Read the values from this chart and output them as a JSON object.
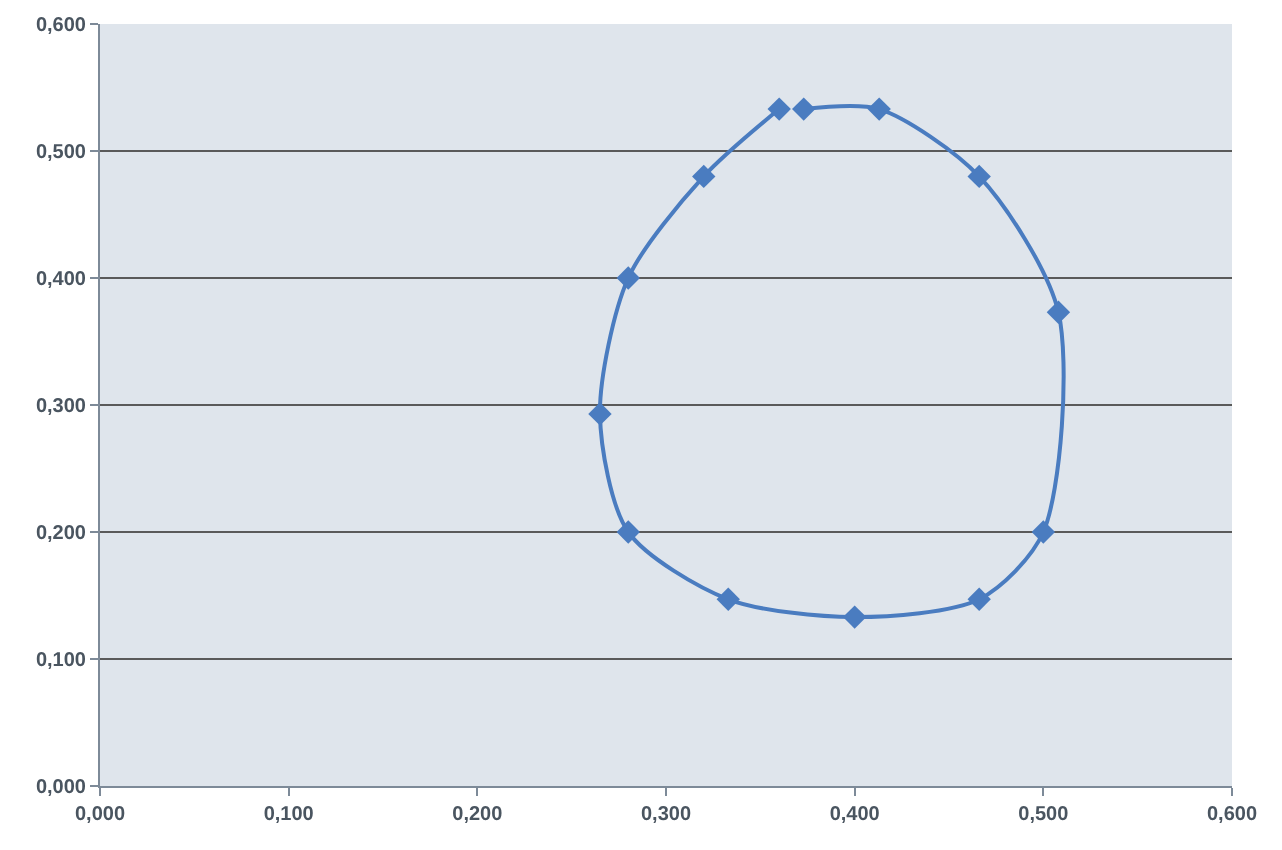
{
  "chart_data": {
    "type": "line",
    "marker": "diamond",
    "grid": "y",
    "x": [
      0.373,
      0.413,
      0.466,
      0.508,
      0.5,
      0.466,
      0.4,
      0.333,
      0.28,
      0.265,
      0.28,
      0.32,
      0.36
    ],
    "series": [
      {
        "color": "#4a7cc0",
        "values": [
          0.533,
          0.533,
          0.48,
          0.373,
          0.2,
          0.147,
          0.133,
          0.147,
          0.2,
          0.293,
          0.4,
          0.48,
          0.533
        ]
      }
    ],
    "xlim": [
      0,
      0.6
    ],
    "ylim": [
      0,
      0.6
    ],
    "xticks": [
      {
        "value": 0,
        "label": "0,000"
      },
      {
        "value": 0.1,
        "label": "0,100"
      },
      {
        "value": 0.2,
        "label": "0,200"
      },
      {
        "value": 0.3,
        "label": "0,300"
      },
      {
        "value": 0.4,
        "label": "0,400"
      },
      {
        "value": 0.5,
        "label": "0,500"
      },
      {
        "value": 0.6,
        "label": "0,600"
      }
    ],
    "yticks": [
      {
        "value": 0,
        "label": "0,000"
      },
      {
        "value": 0.1,
        "label": "0,100"
      },
      {
        "value": 0.2,
        "label": "0,200"
      },
      {
        "value": 0.3,
        "label": "0,300"
      },
      {
        "value": 0.4,
        "label": "0,400"
      },
      {
        "value": 0.5,
        "label": "0,500"
      },
      {
        "value": 0.6,
        "label": "0,600"
      }
    ]
  }
}
